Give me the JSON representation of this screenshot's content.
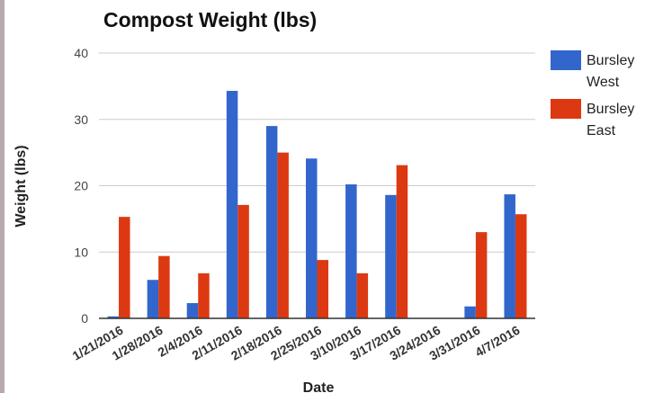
{
  "chart_data": {
    "type": "bar",
    "title": "Compost Weight (lbs)",
    "x_label": "Date",
    "y_label": "Weight (lbs)",
    "categories": [
      "1/21/2016",
      "1/28/2016",
      "2/4/2016",
      "2/11/2016",
      "2/18/2016",
      "2/25/2016",
      "3/10/2016",
      "3/17/2016",
      "3/24/2016",
      "3/31/2016",
      "4/7/2016"
    ],
    "series": [
      {
        "name": "Bursley West",
        "color": "#3366cc",
        "values": [
          0.3,
          5.8,
          2.3,
          34.3,
          29.0,
          24.1,
          20.2,
          18.6,
          null,
          1.8,
          18.7
        ]
      },
      {
        "name": "Bursley East",
        "color": "#dc3912",
        "values": [
          15.3,
          9.4,
          6.8,
          17.1,
          25.0,
          8.8,
          6.8,
          23.1,
          null,
          13.0,
          15.7
        ]
      }
    ],
    "ylim": [
      0,
      40
    ],
    "yticks": [
      0,
      10,
      20,
      30,
      40
    ],
    "grid": true,
    "legend": "right"
  }
}
